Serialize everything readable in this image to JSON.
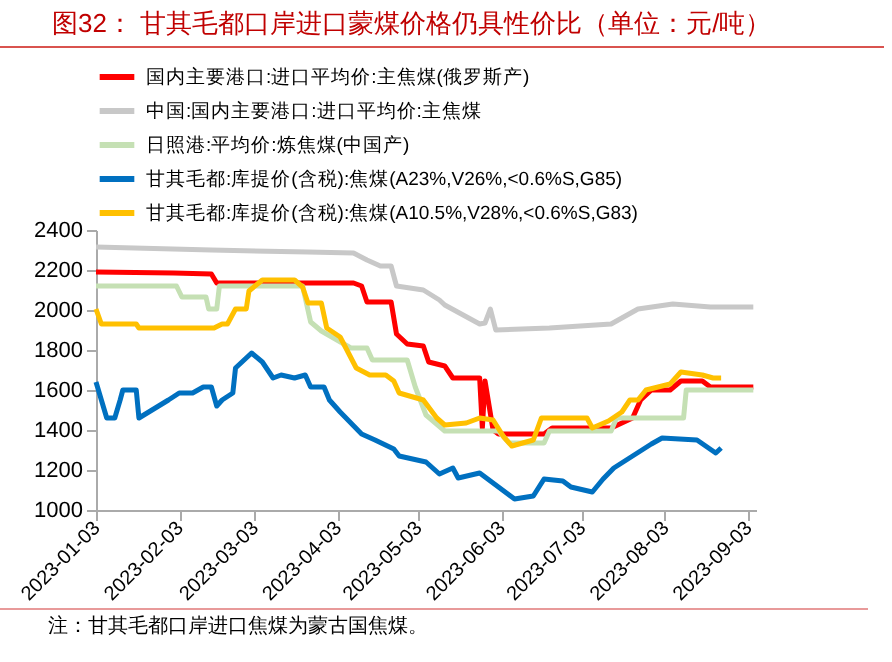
{
  "chart_data": {
    "type": "line",
    "title": "图32：  甘其毛都口岸进口蒙煤价格仍具性价比（单位：元/吨）",
    "annotations": [
      "注：甘其毛都口岸进口焦煤为蒙古国焦煤。"
    ],
    "legend": "top",
    "grid": false,
    "marker": "none",
    "line_style": "solid",
    "xlim": [
      "2023-01-03",
      "2023-09-06"
    ],
    "xticks": [
      "2023-01-03",
      "2023-02-03",
      "2023-03-03",
      "2023-04-03",
      "2023-05-03",
      "2023-06-03",
      "2023-07-03",
      "2023-08-03",
      "2023-09-03"
    ],
    "ylim": [
      1000,
      2400
    ],
    "yticks": [
      1000,
      1200,
      1400,
      1600,
      1800,
      2000,
      2200,
      2400
    ],
    "series": [
      {
        "name": "国内主要港口:进口平均价:主焦煤(俄罗斯产)",
        "color": "#ff0000",
        "x": [
          "2023-01-03",
          "2023-02-01",
          "2023-02-15",
          "2023-02-17",
          "2023-04-09",
          "2023-04-12",
          "2023-04-14",
          "2023-04-23",
          "2023-04-25",
          "2023-04-29",
          "2023-05-05",
          "2023-05-07",
          "2023-05-13",
          "2023-05-16",
          "2023-05-26",
          "2023-05-27",
          "2023-05-28",
          "2023-05-31",
          "2023-06-02",
          "2023-06-19",
          "2023-06-22",
          "2023-07-14",
          "2023-07-22",
          "2023-07-25",
          "2023-07-29",
          "2023-08-05",
          "2023-08-09",
          "2023-08-17",
          "2023-08-20",
          "2023-09-05"
        ],
        "values": [
          2190,
          2185,
          2180,
          2135,
          2135,
          2120,
          2040,
          2040,
          1880,
          1830,
          1820,
          1740,
          1720,
          1660,
          1660,
          1410,
          1645,
          1400,
          1380,
          1380,
          1410,
          1410,
          1460,
          1550,
          1600,
          1600,
          1645,
          1645,
          1615,
          1615
        ]
      },
      {
        "name": "中国:国内主要港口:进口平均价:主焦煤",
        "color": "#c8c8c8",
        "x": [
          "2023-01-03",
          "2023-02-15",
          "2023-03-23",
          "2023-04-09",
          "2023-04-14",
          "2023-04-19",
          "2023-04-23",
          "2023-04-25",
          "2023-05-05",
          "2023-05-11",
          "2023-05-13",
          "2023-05-26",
          "2023-05-28",
          "2023-05-30",
          "2023-06-01",
          "2023-06-21",
          "2023-07-14",
          "2023-07-24",
          "2023-08-06",
          "2023-08-20",
          "2023-09-05"
        ],
        "values": [
          2315,
          2300,
          2290,
          2285,
          2250,
          2220,
          2220,
          2120,
          2100,
          2050,
          2025,
          1930,
          1935,
          2005,
          1900,
          1910,
          1930,
          2005,
          2030,
          2015,
          2015
        ]
      },
      {
        "name": "日照港:平均价:炼焦煤(中国产)",
        "color": "#c5e0b4",
        "x": [
          "2023-01-03",
          "2023-02-02",
          "2023-02-04",
          "2023-02-13",
          "2023-02-14",
          "2023-02-17",
          "2023-02-18",
          "2023-03-21",
          "2023-03-24",
          "2023-03-28",
          "2023-04-08",
          "2023-04-14",
          "2023-04-16",
          "2023-04-29",
          "2023-05-02",
          "2023-05-06",
          "2023-05-13",
          "2023-06-02",
          "2023-06-06",
          "2023-06-19",
          "2023-06-21",
          "2023-07-14",
          "2023-07-16",
          "2023-08-10",
          "2023-08-11",
          "2023-09-05"
        ],
        "values": [
          2120,
          2120,
          2065,
          2065,
          2005,
          2005,
          2120,
          2120,
          1940,
          1895,
          1810,
          1810,
          1750,
          1750,
          1615,
          1475,
          1395,
          1395,
          1335,
          1335,
          1395,
          1395,
          1460,
          1460,
          1600,
          1600
        ]
      },
      {
        "name": "甘其毛都:库提价(含税):焦煤(A23%,V26%,<0.6%S,G85)",
        "color": "#0070c0",
        "x": [
          "2023-01-03",
          "2023-01-05",
          "2023-01-07",
          "2023-01-10",
          "2023-01-12",
          "2023-01-13",
          "2023-01-18",
          "2023-01-19",
          "2023-01-30",
          "2023-02-03",
          "2023-02-08",
          "2023-02-12",
          "2023-02-15",
          "2023-02-17",
          "2023-02-19",
          "2023-02-23",
          "2023-02-24",
          "2023-03-02",
          "2023-03-06",
          "2023-03-10",
          "2023-03-13",
          "2023-03-18",
          "2023-03-22",
          "2023-03-24",
          "2023-03-29",
          "2023-03-31",
          "2023-04-04",
          "2023-04-12",
          "2023-04-17",
          "2023-04-24",
          "2023-04-26",
          "2023-05-06",
          "2023-05-11",
          "2023-05-16",
          "2023-05-18",
          "2023-05-26",
          "2023-06-02",
          "2023-06-08",
          "2023-06-15",
          "2023-06-19",
          "2023-06-26",
          "2023-06-29",
          "2023-07-07",
          "2023-07-11",
          "2023-07-15",
          "2023-07-22",
          "2023-07-29",
          "2023-08-02",
          "2023-08-15",
          "2023-08-22",
          "2023-08-24"
        ],
        "values": [
          1640,
          1550,
          1460,
          1460,
          1550,
          1600,
          1600,
          1460,
          1550,
          1585,
          1585,
          1615,
          1615,
          1520,
          1550,
          1585,
          1710,
          1785,
          1740,
          1660,
          1675,
          1660,
          1675,
          1615,
          1615,
          1550,
          1490,
          1380,
          1350,
          1305,
          1270,
          1240,
          1180,
          1210,
          1160,
          1185,
          1115,
          1055,
          1070,
          1155,
          1145,
          1115,
          1090,
          1155,
          1210,
          1270,
          1330,
          1360,
          1350,
          1285,
          1310
        ]
      },
      {
        "name": "甘其毛都:库提价(含税):焦煤(A10.5%,V28%,<0.6%S,G83)",
        "color": "#ffc000",
        "x": [
          "2023-01-03",
          "2023-01-05",
          "2023-01-18",
          "2023-01-19",
          "2023-02-16",
          "2023-02-19",
          "2023-02-21",
          "2023-02-24",
          "2023-02-28",
          "2023-03-01",
          "2023-03-06",
          "2023-03-18",
          "2023-03-21",
          "2023-03-23",
          "2023-03-28",
          "2023-03-30",
          "2023-04-04",
          "2023-04-10",
          "2023-04-15",
          "2023-04-21",
          "2023-04-24",
          "2023-04-26",
          "2023-05-05",
          "2023-05-10",
          "2023-05-13",
          "2023-05-21",
          "2023-05-26",
          "2023-05-31",
          "2023-06-04",
          "2023-06-07",
          "2023-06-15",
          "2023-06-18",
          "2023-07-05",
          "2023-07-07",
          "2023-07-13",
          "2023-07-18",
          "2023-07-21",
          "2023-07-24",
          "2023-07-27",
          "2023-08-05",
          "2023-08-09",
          "2023-08-17",
          "2023-08-21",
          "2023-08-24"
        ],
        "values": [
          2005,
          1930,
          1930,
          1910,
          1910,
          1930,
          1930,
          2005,
          2005,
          2095,
          2150,
          2150,
          2115,
          2035,
          2035,
          1910,
          1865,
          1710,
          1675,
          1675,
          1645,
          1585,
          1550,
          1460,
          1425,
          1435,
          1460,
          1450,
          1365,
          1320,
          1350,
          1460,
          1460,
          1410,
          1445,
          1490,
          1550,
          1550,
          1600,
          1630,
          1690,
          1675,
          1660,
          1660
        ]
      }
    ]
  }
}
